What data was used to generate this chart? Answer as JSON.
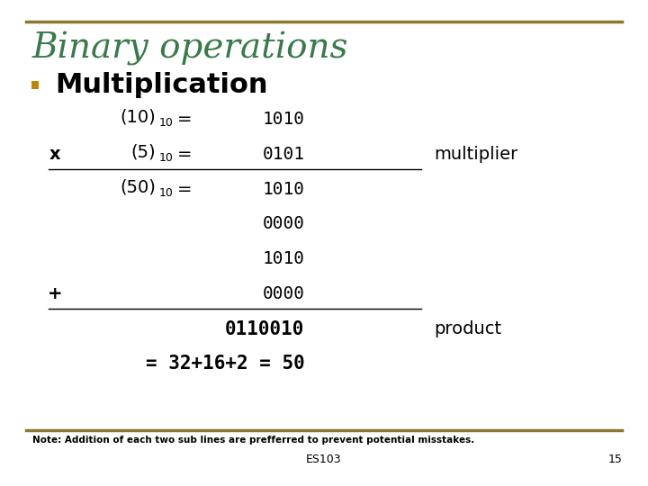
{
  "title": "Binary operations",
  "title_color": "#3a7a4a",
  "title_fontsize": 28,
  "bullet_color": "#B8860B",
  "bullet_label": "Multiplication",
  "bullet_fontsize": 22,
  "bg_color": "#ffffff",
  "border_color": "#8B7830",
  "slide_number": "15",
  "footer_text": "ES103",
  "note_text": "Note: Addition of each two sub lines are prefferred to prevent potential misstakes.",
  "rows": [
    {
      "x_label": "",
      "op": "(10)",
      "sub": "10",
      "eq": "=",
      "binary": "1010",
      "side_note": ""
    },
    {
      "x_label": "x",
      "op": "(5)",
      "sub": "10",
      "eq": "=",
      "binary": "0101",
      "side_note": "multiplier"
    },
    {
      "x_label": "",
      "op": "(50)",
      "sub": "10",
      "eq": "=",
      "binary": "1010",
      "side_note": ""
    },
    {
      "x_label": "",
      "op": "",
      "sub": "",
      "eq": "",
      "binary": "0000",
      "side_note": ""
    },
    {
      "x_label": "",
      "op": "",
      "sub": "",
      "eq": "",
      "binary": "1010",
      "side_note": ""
    },
    {
      "x_label": "+",
      "op": "",
      "sub": "",
      "eq": "",
      "binary": "0000",
      "side_note": ""
    },
    {
      "x_label": "",
      "op": "",
      "sub": "",
      "eq": "",
      "binary": "0110010",
      "side_note": "product"
    },
    {
      "x_label": "",
      "op": "",
      "sub": "",
      "eq": "",
      "binary": "= 32+16+2 = 50",
      "side_note": ""
    }
  ],
  "line1_after_row": 1,
  "line2_after_row": 5,
  "bold_rows": [
    6,
    7
  ],
  "product_row": 6,
  "sum_row": 7
}
